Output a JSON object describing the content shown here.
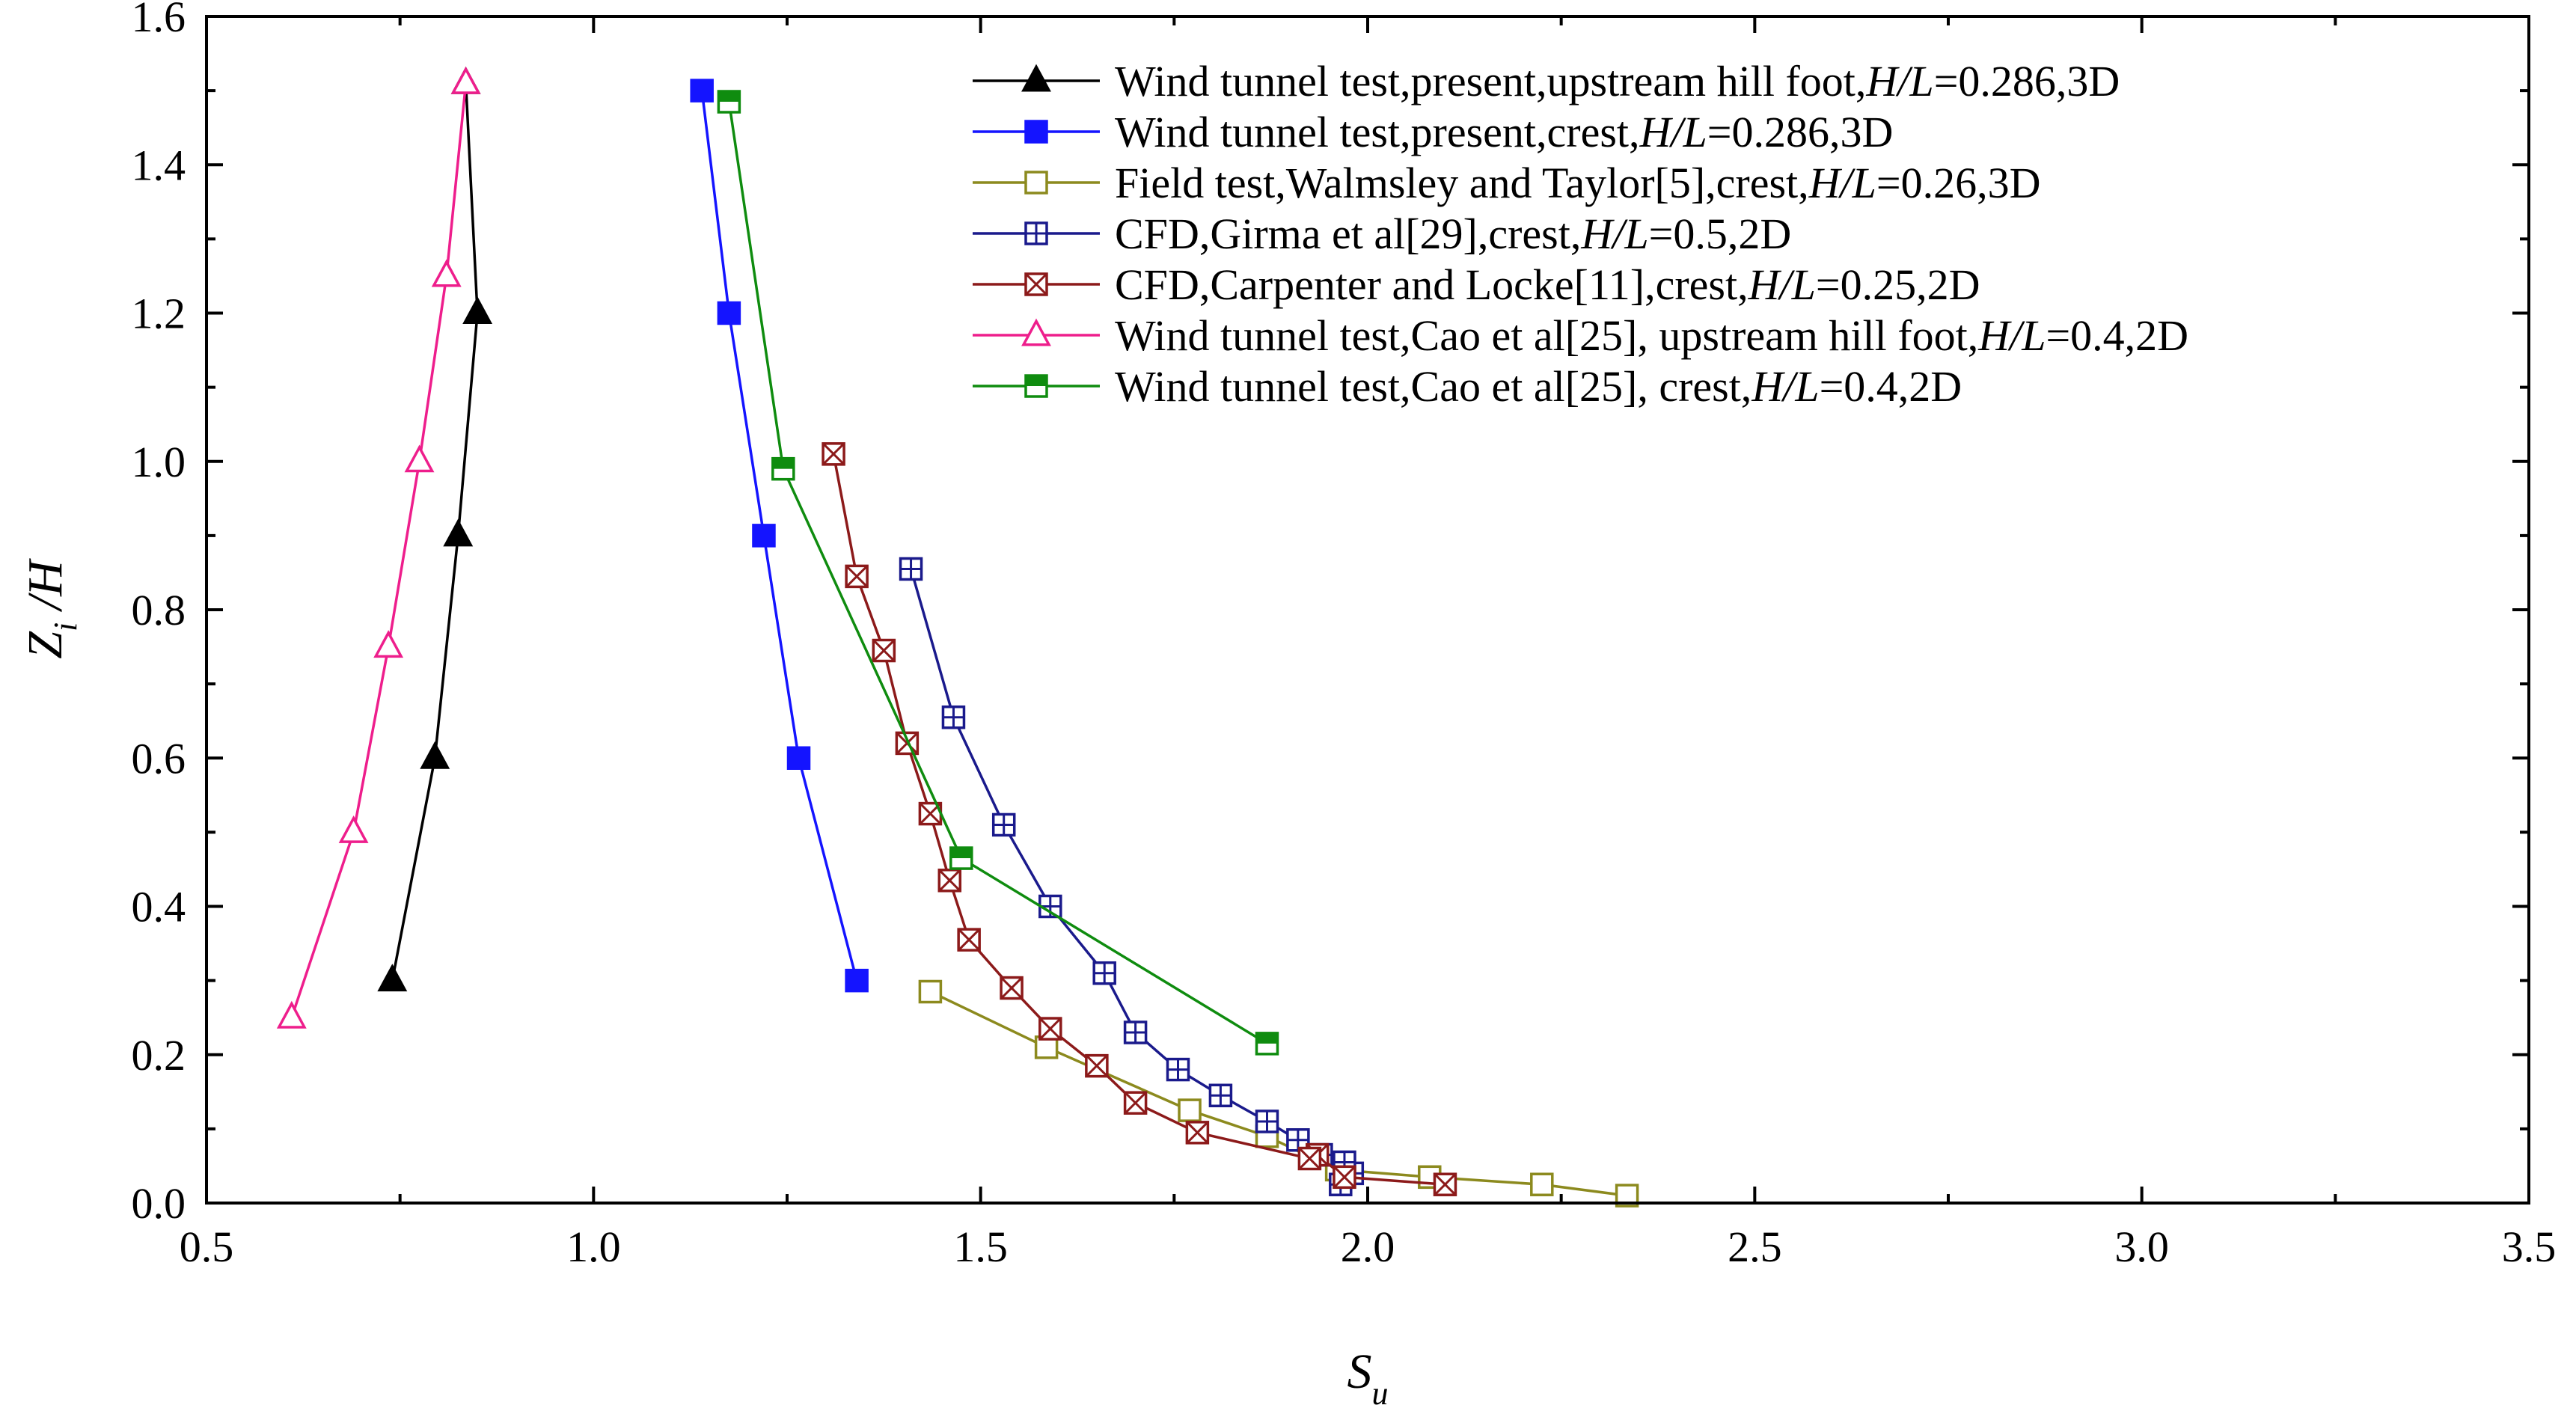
{
  "chart_data": {
    "type": "line",
    "xlabel": "S",
    "xlabel_sub": "u",
    "ylabel": "Z",
    "ylabel_sub": "i",
    "ylabel_suffix": " /H",
    "xlim": [
      0.5,
      3.5
    ],
    "ylim": [
      0.0,
      1.6
    ],
    "x_ticks": [
      "0.5",
      "1.0",
      "1.5",
      "2.0",
      "2.5",
      "3.0",
      "3.5"
    ],
    "y_ticks": [
      "0.0",
      "0.2",
      "0.4",
      "0.6",
      "0.8",
      "1.0",
      "1.2",
      "1.4",
      "1.6"
    ],
    "grid": false,
    "legend_position": "top-right",
    "series": [
      {
        "name": "Wind tunnel test,present,upstream hill foot,H/L=0.286,3D",
        "legend_parts": [
          [
            "Wind tunnel test,present,upstream hill foot,",
            false
          ],
          [
            "H/L",
            true
          ],
          [
            "=0.286,3D",
            false
          ]
        ],
        "color": "#000000",
        "marker": "triangle",
        "fill": "solid",
        "x": [
          0.74,
          0.795,
          0.825,
          0.85,
          0.835
        ],
        "y": [
          0.3,
          0.6,
          0.9,
          1.2,
          1.51
        ]
      },
      {
        "name": "Wind tunnel test,present,crest,H/L=0.286,3D",
        "legend_parts": [
          [
            "Wind tunnel test,present,crest,",
            false
          ],
          [
            "H/L",
            true
          ],
          [
            "=0.286,3D",
            false
          ]
        ],
        "color": "#1414ff",
        "marker": "square",
        "fill": "solid",
        "x": [
          1.34,
          1.265,
          1.22,
          1.175,
          1.14
        ],
        "y": [
          0.3,
          0.6,
          0.9,
          1.2,
          1.5
        ]
      },
      {
        "name": "Field test,Walmsley and Taylor[5],crest,H/L=0.26,3D",
        "legend_parts": [
          [
            "Field test,Walmsley and Taylor[5],crest,",
            false
          ],
          [
            "H/L",
            true
          ],
          [
            "=0.26,3D",
            false
          ]
        ],
        "color": "#8c8a1e",
        "marker": "square",
        "fill": "open",
        "x": [
          2.335,
          2.225,
          2.08,
          1.96,
          1.87,
          1.77,
          1.585,
          1.435
        ],
        "y": [
          0.01,
          0.025,
          0.035,
          0.045,
          0.09,
          0.125,
          0.21,
          0.285
        ]
      },
      {
        "name": "CFD,Girma et al[29],crest,H/L=0.5,2D",
        "legend_parts": [
          [
            "CFD,Girma et al[29],crest,",
            false
          ],
          [
            "H/L",
            true
          ],
          [
            "=0.5,2D",
            false
          ]
        ],
        "color": "#1a1a8c",
        "marker": "square",
        "fill": "plus",
        "x": [
          1.965,
          1.98,
          1.97,
          1.94,
          1.91,
          1.87,
          1.81,
          1.755,
          1.7,
          1.66,
          1.59,
          1.53,
          1.465,
          1.41
        ],
        "y": [
          0.025,
          0.04,
          0.055,
          0.065,
          0.085,
          0.11,
          0.145,
          0.18,
          0.23,
          0.31,
          0.4,
          0.51,
          0.655,
          0.855
        ]
      },
      {
        "name": "CFD,Carpenter and Locke[11],crest,H/L=0.25,2D",
        "legend_parts": [
          [
            "CFD,Carpenter and Locke[11],crest,",
            false
          ],
          [
            "H/L",
            true
          ],
          [
            "=0.25,2D",
            false
          ]
        ],
        "color": "#8c1a1a",
        "marker": "square",
        "fill": "cross",
        "x": [
          2.1,
          1.97,
          1.935,
          1.925,
          1.78,
          1.7,
          1.65,
          1.59,
          1.54,
          1.485,
          1.46,
          1.435,
          1.405,
          1.375,
          1.34,
          1.31
        ],
        "y": [
          0.025,
          0.035,
          0.065,
          0.06,
          0.095,
          0.135,
          0.185,
          0.235,
          0.29,
          0.355,
          0.435,
          0.525,
          0.62,
          0.745,
          0.845,
          1.01
        ]
      },
      {
        "name": "Wind tunnel test,Cao et al[25], upstream hill foot,H/L=0.4,2D",
        "legend_parts": [
          [
            "Wind tunnel test,Cao et al[25], upstream hill foot,",
            false
          ],
          [
            "H/L",
            true
          ],
          [
            "=0.4,2D",
            false
          ]
        ],
        "color": "#ee1e8c",
        "marker": "triangle",
        "fill": "open",
        "x": [
          0.61,
          0.69,
          0.735,
          0.775,
          0.81,
          0.835
        ],
        "y": [
          0.25,
          0.5,
          0.75,
          1.0,
          1.25,
          1.51
        ]
      },
      {
        "name": "Wind tunnel test,Cao et al[25], crest,H/L=0.4,2D",
        "legend_parts": [
          [
            "Wind tunnel test,Cao et al[25], crest,",
            false
          ],
          [
            "H/L",
            true
          ],
          [
            "=0.4,2D",
            false
          ]
        ],
        "color": "#0f8c0f",
        "marker": "square",
        "fill": "halftop",
        "x": [
          1.87,
          1.475,
          1.245,
          1.175
        ],
        "y": [
          0.215,
          0.465,
          0.99,
          1.485
        ]
      }
    ]
  }
}
